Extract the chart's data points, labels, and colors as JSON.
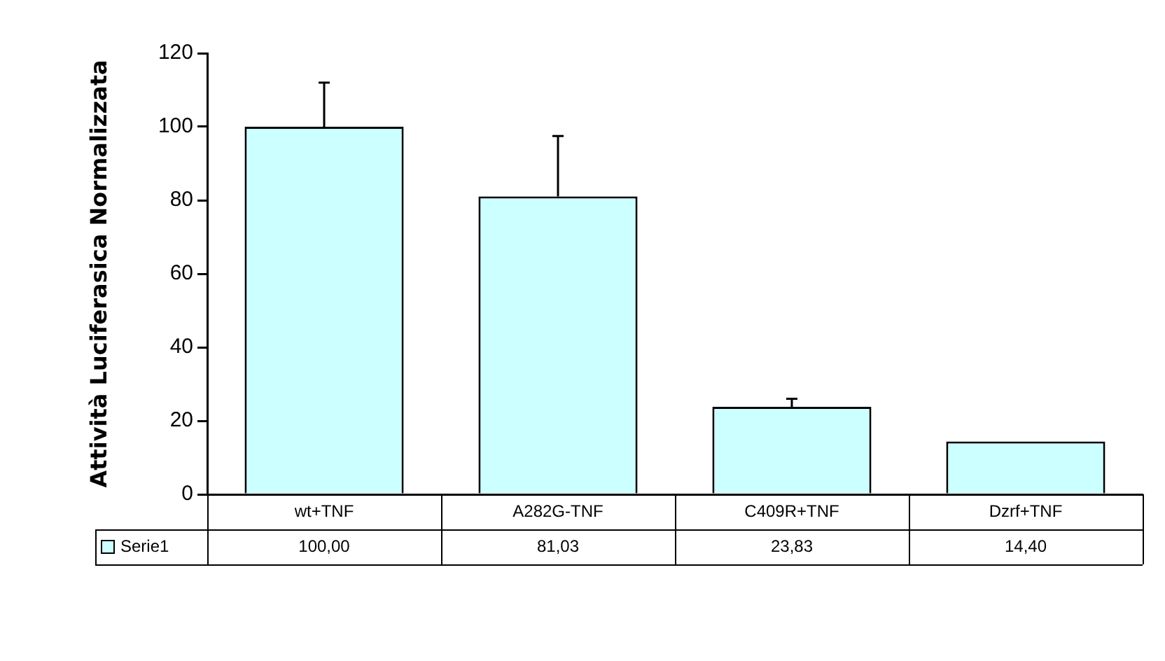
{
  "chart_data": {
    "type": "bar",
    "ylabel": "Attività Luciferasica Normalizzata",
    "categories": [
      "wt+TNF",
      "A282G-TNF",
      "C409R+TNF",
      "Dzrf+TNF"
    ],
    "series": [
      {
        "name": "Serie1",
        "color": "#ccffff",
        "values": [
          100,
          81.03,
          23.83,
          14.4
        ],
        "errors": [
          [
            100,
            112
          ],
          [
            81.03,
            97.5
          ],
          [
            23.83,
            26
          ],
          null
        ],
        "value_labels": [
          "100,00",
          "81,03",
          "23,83",
          "14,40"
        ]
      }
    ],
    "ylim": [
      0,
      120
    ],
    "yticks": [
      0,
      20,
      40,
      60,
      80,
      100,
      120
    ],
    "grid": false,
    "legend": "bottom left"
  }
}
